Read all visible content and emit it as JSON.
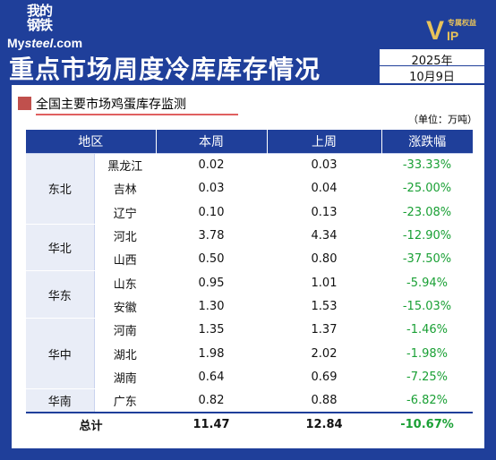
{
  "logo": {
    "cn": "我的钢铁",
    "en_prefix": "My",
    "en_italic": "steel",
    "en_suffix": ".com"
  },
  "vip": {
    "v": "V",
    "ip": "IP",
    "tag": "专属权益"
  },
  "title": "重点市场周度冷库库存情况",
  "date": {
    "year": "2025年",
    "day": "10月9日"
  },
  "subtitle": "全国主要市场鸡蛋库存监测",
  "unit": "（单位：万吨）",
  "colors": {
    "header_bg": "#1f3f9a",
    "accent_square": "#c0504d",
    "change_text": "#1aa035"
  },
  "table": {
    "headers": {
      "region": "地区",
      "this_week": "本周",
      "last_week": "上周",
      "change": "涨跌幅"
    },
    "regions": [
      {
        "name": "东北",
        "rows": [
          {
            "province": "黑龙江",
            "this_week": "0.02",
            "last_week": "0.03",
            "change": "-33.33%"
          },
          {
            "province": "吉林",
            "this_week": "0.03",
            "last_week": "0.04",
            "change": "-25.00%"
          },
          {
            "province": "辽宁",
            "this_week": "0.10",
            "last_week": "0.13",
            "change": "-23.08%"
          }
        ]
      },
      {
        "name": "华北",
        "rows": [
          {
            "province": "河北",
            "this_week": "3.78",
            "last_week": "4.34",
            "change": "-12.90%"
          },
          {
            "province": "山西",
            "this_week": "0.50",
            "last_week": "0.80",
            "change": "-37.50%"
          }
        ]
      },
      {
        "name": "华东",
        "rows": [
          {
            "province": "山东",
            "this_week": "0.95",
            "last_week": "1.01",
            "change": "-5.94%"
          },
          {
            "province": "安徽",
            "this_week": "1.30",
            "last_week": "1.53",
            "change": "-15.03%"
          }
        ]
      },
      {
        "name": "华中",
        "rows": [
          {
            "province": "河南",
            "this_week": "1.35",
            "last_week": "1.37",
            "change": "-1.46%"
          },
          {
            "province": "湖北",
            "this_week": "1.98",
            "last_week": "2.02",
            "change": "-1.98%"
          },
          {
            "province": "湖南",
            "this_week": "0.64",
            "last_week": "0.69",
            "change": "-7.25%"
          }
        ]
      },
      {
        "name": "华南",
        "rows": [
          {
            "province": "广东",
            "this_week": "0.82",
            "last_week": "0.88",
            "change": "-6.82%"
          }
        ]
      }
    ],
    "total": {
      "label": "总计",
      "this_week": "11.47",
      "last_week": "12.84",
      "change": "-10.67%"
    }
  }
}
